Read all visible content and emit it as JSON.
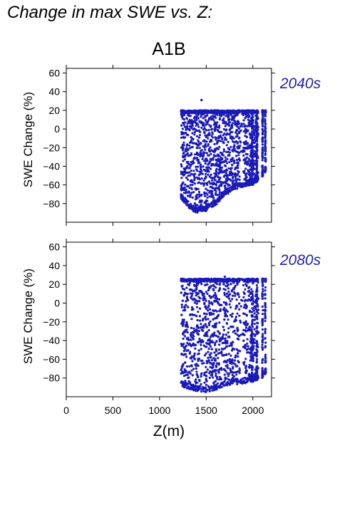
{
  "figure": {
    "title": "Change in max SWE vs. Z:",
    "scenario": "A1B",
    "xlabel": "Z(m)",
    "ylabel": "SWE Change (%)"
  },
  "colors": {
    "points": "#1a1ab8",
    "period_label": "#2222aa",
    "axis": "#000000"
  },
  "chart_data": [
    {
      "type": "scatter",
      "period_label": "2040s",
      "xlabel": "",
      "ylabel": "SWE Change (%)",
      "xlim": [
        0,
        2200
      ],
      "ylim": [
        -100,
        65
      ],
      "xticks": [
        0,
        500,
        1000,
        1500,
        2000
      ],
      "yticks": [
        -80,
        -60,
        -40,
        -20,
        0,
        20,
        40,
        60
      ],
      "grid": false,
      "points_shape": {
        "x_range": [
          1230,
          2140
        ],
        "upper_bound": 20,
        "max_point": {
          "x": 1450,
          "y": 31
        },
        "lower_envelope": [
          [
            1230,
            -75
          ],
          [
            1300,
            -83
          ],
          [
            1350,
            -88
          ],
          [
            1400,
            -90
          ],
          [
            1450,
            -88
          ],
          [
            1500,
            -88
          ],
          [
            1550,
            -84
          ],
          [
            1600,
            -82
          ],
          [
            1650,
            -78
          ],
          [
            1700,
            -72
          ],
          [
            1800,
            -65
          ],
          [
            1900,
            -62
          ],
          [
            2000,
            -60
          ],
          [
            2100,
            -52
          ],
          [
            2140,
            -45
          ]
        ]
      }
    },
    {
      "type": "scatter",
      "period_label": "2080s",
      "xlabel": "Z(m)",
      "ylabel": "SWE Change (%)",
      "xlim": [
        0,
        2200
      ],
      "ylim": [
        -100,
        65
      ],
      "xticks": [
        0,
        500,
        1000,
        1500,
        2000
      ],
      "yticks": [
        -80,
        -60,
        -40,
        -20,
        0,
        20,
        40,
        60
      ],
      "grid": false,
      "points_shape": {
        "x_range": [
          1230,
          2140
        ],
        "upper_bound": 26,
        "max_point": {
          "x": 1700,
          "y": 28
        },
        "lower_envelope": [
          [
            1230,
            -88
          ],
          [
            1300,
            -92
          ],
          [
            1400,
            -94
          ],
          [
            1500,
            -95
          ],
          [
            1600,
            -93
          ],
          [
            1700,
            -90
          ],
          [
            1800,
            -87
          ],
          [
            1900,
            -86
          ],
          [
            2000,
            -84
          ],
          [
            2100,
            -80
          ],
          [
            2140,
            -75
          ]
        ]
      }
    }
  ]
}
